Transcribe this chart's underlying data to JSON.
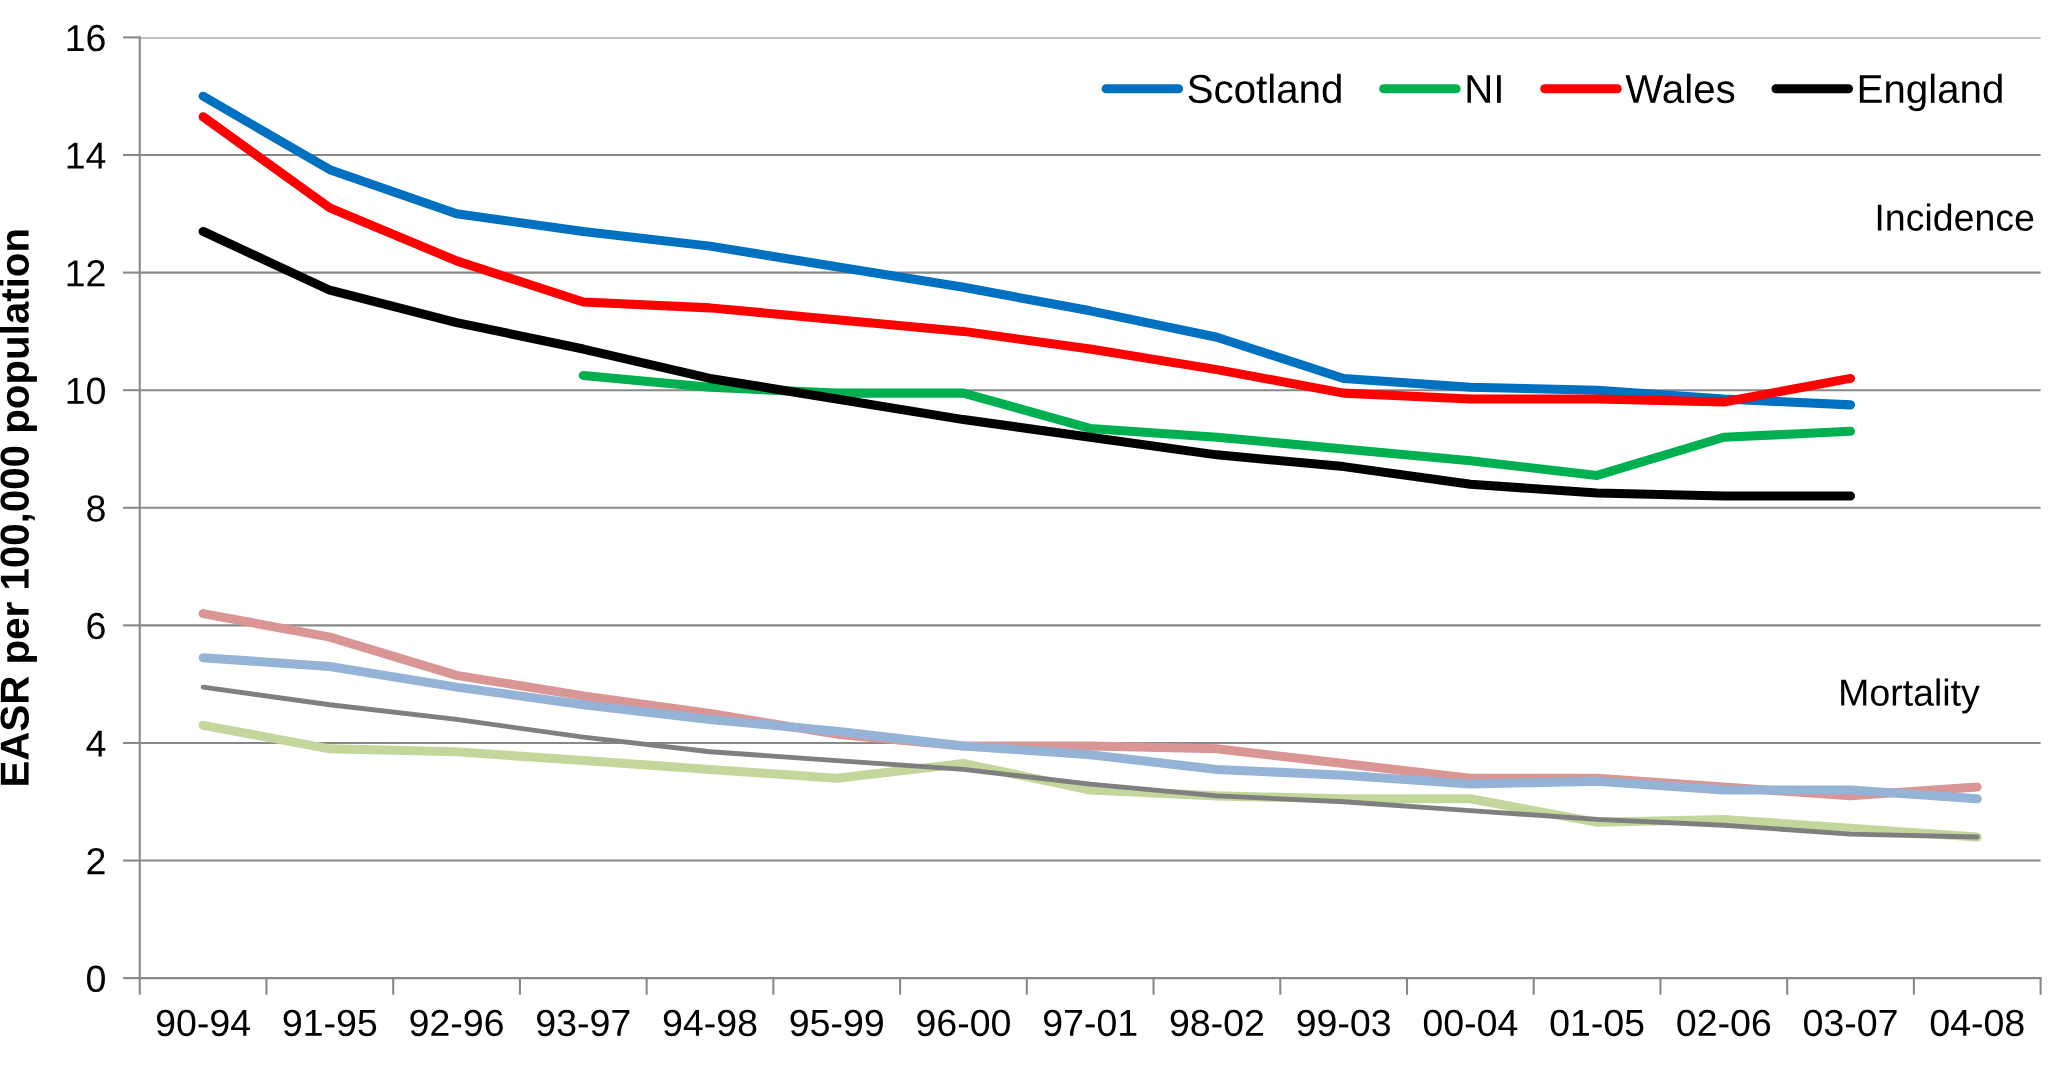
{
  "chart_data": {
    "type": "line",
    "ylabel": "EASR per 100,000 population",
    "categories": [
      "90-94",
      "91-95",
      "92-96",
      "93-97",
      "94-98",
      "95-99",
      "96-00",
      "97-01",
      "98-02",
      "99-03",
      "00-04",
      "01-05",
      "02-06",
      "03-07",
      "04-08"
    ],
    "series": [
      {
        "name": "Scotland",
        "color": "#0070c0",
        "values": [
          15.0,
          13.75,
          13.0,
          12.7,
          12.45,
          12.1,
          11.75,
          11.35,
          10.9,
          10.2,
          10.05,
          10.0,
          9.85,
          9.75,
          null
        ]
      },
      {
        "name": "NI",
        "color": "#00b050",
        "values": [
          null,
          null,
          null,
          10.25,
          10.05,
          9.95,
          9.95,
          9.35,
          9.2,
          9.0,
          8.8,
          8.55,
          9.2,
          9.3,
          null
        ]
      },
      {
        "name": "Wales",
        "color": "#ff0000",
        "values": [
          14.65,
          13.1,
          12.2,
          11.5,
          11.4,
          11.2,
          11.0,
          10.7,
          10.35,
          9.95,
          9.85,
          9.85,
          9.8,
          10.2,
          null
        ]
      },
      {
        "name": "England",
        "color": "#000000",
        "values": [
          12.7,
          11.7,
          11.15,
          10.7,
          10.2,
          9.85,
          9.5,
          9.2,
          8.9,
          8.7,
          8.4,
          8.25,
          8.2,
          8.2,
          null
        ]
      },
      {
        "color": "#d99694",
        "values": [
          6.2,
          5.8,
          5.15,
          4.8,
          4.5,
          4.15,
          3.95,
          3.95,
          3.9,
          3.65,
          3.4,
          3.4,
          3.25,
          3.1,
          3.25
        ]
      },
      {
        "color": "#95b3d7",
        "values": [
          5.45,
          5.3,
          4.95,
          4.65,
          4.4,
          4.2,
          3.95,
          3.8,
          3.55,
          3.45,
          3.3,
          3.35,
          3.2,
          3.2,
          3.05
        ]
      },
      {
        "color": "#c3d69b",
        "values": [
          4.3,
          3.9,
          3.85,
          3.7,
          3.55,
          3.4,
          3.65,
          3.2,
          3.1,
          3.05,
          3.05,
          2.65,
          2.7,
          2.55,
          2.4
        ]
      },
      {
        "color": "#7f7f7f",
        "values": [
          4.95,
          4.65,
          4.4,
          4.1,
          3.85,
          3.7,
          3.55,
          3.3,
          3.1,
          3.0,
          2.85,
          2.7,
          2.6,
          2.45,
          2.4
        ]
      }
    ],
    "annotations": [
      "Incidence",
      "Mortality"
    ],
    "ylim": [
      0,
      16
    ],
    "yticks": [
      0,
      2,
      4,
      6,
      8,
      10,
      12,
      14,
      16
    ],
    "grid": "y",
    "legend": "top right",
    "marker": "none",
    "line_style": "solid"
  }
}
